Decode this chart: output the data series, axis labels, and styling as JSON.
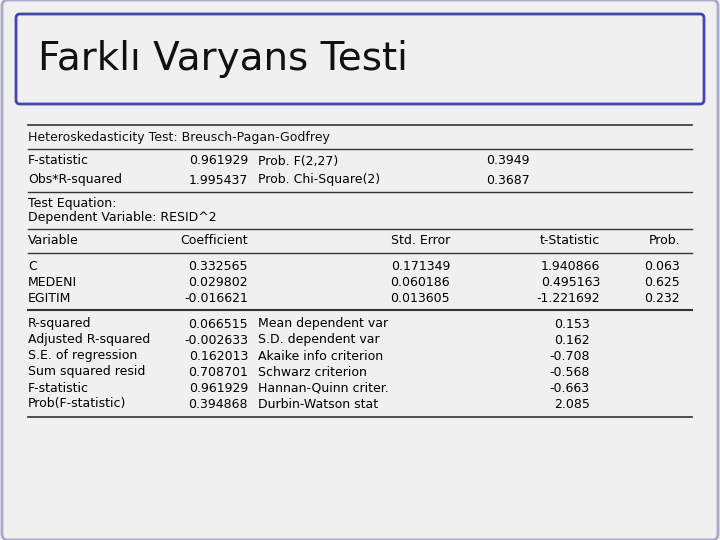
{
  "title": "Farklı Varyans Testi",
  "bg_color": "#f0f0f0",
  "outer_box_color": "#aaaacc",
  "title_box_edge_color": "#4444aa",
  "title_box_face_color": "#f0f0f0",
  "section1_header": "Heteroskedasticity Test: Breusch-Pagan-Godfrey",
  "row1": [
    "F-statistic",
    "0.961929",
    "Prob. F(2,27)",
    "0.3949"
  ],
  "row2": [
    "Obs*R-squared",
    "1.995437",
    "Prob. Chi-Square(2)",
    "0.3687"
  ],
  "text_eq1": "Test Equation:",
  "text_eq2": "Dependent Variable: RESID^2",
  "col_headers": [
    "Variable",
    "Coefficient",
    "Std. Error",
    "t-Statistic",
    "Prob."
  ],
  "data_rows": [
    [
      "C",
      "0.332565",
      "0.171349",
      "1.940866",
      "0.063"
    ],
    [
      "MEDENI",
      "0.029802",
      "0.060186",
      "0.495163",
      "0.625"
    ],
    [
      "EGITIM",
      "-0.016621",
      "0.013605",
      "-1.221692",
      "0.232"
    ]
  ],
  "stats_left": [
    [
      "R-squared",
      "0.066515"
    ],
    [
      "Adjusted R-squared",
      "-0.002633"
    ],
    [
      "S.E. of regression",
      "0.162013"
    ],
    [
      "Sum squared resid",
      "0.708701"
    ],
    [
      "F-statistic",
      "0.961929"
    ],
    [
      "Prob(F-statistic)",
      "0.394868"
    ]
  ],
  "stats_right": [
    [
      "Mean dependent var",
      "0.153"
    ],
    [
      "S.D. dependent var",
      "0.162"
    ],
    [
      "Akaike info criterion",
      "-0.708"
    ],
    [
      "Schwarz criterion",
      "-0.568"
    ],
    [
      "Hannan-Quinn criter.",
      "-0.663"
    ],
    [
      "Durbin-Watson stat",
      "2.085"
    ]
  ]
}
